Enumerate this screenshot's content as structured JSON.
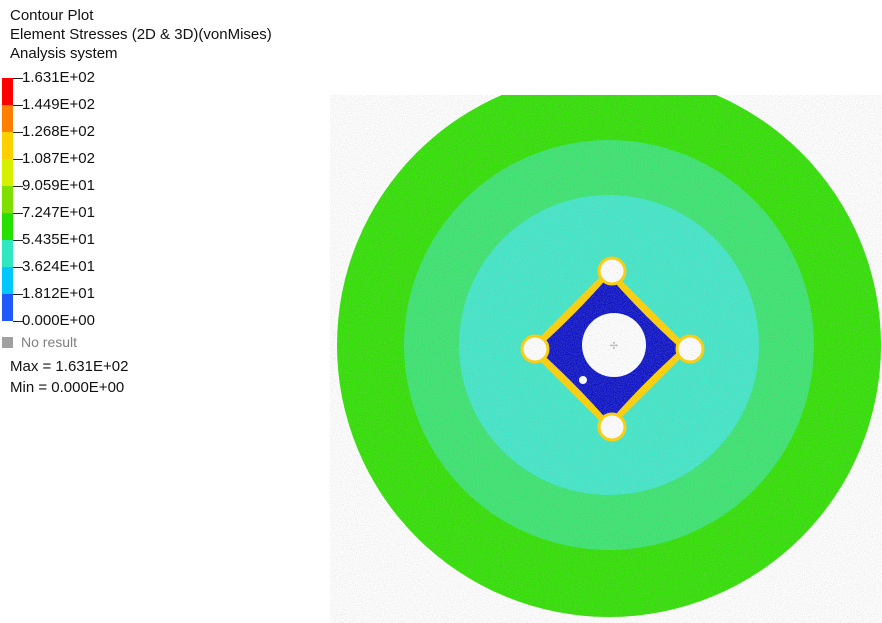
{
  "header": {
    "line1": "Contour Plot",
    "line2": "Element Stresses (2D & 3D)(vonMises)",
    "line3": "Analysis system"
  },
  "legend": {
    "levels": [
      {
        "label": "1.631E+02",
        "color": "#ff0000"
      },
      {
        "label": "1.449E+02",
        "color": "#ff7f00"
      },
      {
        "label": "1.268E+02",
        "color": "#ffd000"
      },
      {
        "label": "1.087E+02",
        "color": "#d5f000"
      },
      {
        "label": "9.059E+01",
        "color": "#7fe000"
      },
      {
        "label": "7.247E+01",
        "color": "#26e000"
      },
      {
        "label": "5.435E+01",
        "color": "#2fe7c0"
      },
      {
        "label": "3.624E+01",
        "color": "#00c8ff"
      },
      {
        "label": "1.812E+01",
        "color": "#1f58ff"
      },
      {
        "label": "0.000E+00",
        "color": "#0000c0"
      }
    ],
    "no_result": "No result",
    "no_result_color": "#a0a0a0"
  },
  "summary": {
    "max": "Max = 1.631E+02",
    "min": "Min = 0.000E+00"
  },
  "plot_colors": {
    "outer": "#2fe000",
    "mid": "#3fe7c8",
    "low": "#0a10c8",
    "hot": "#ffd100",
    "hole": "#ffffff"
  }
}
